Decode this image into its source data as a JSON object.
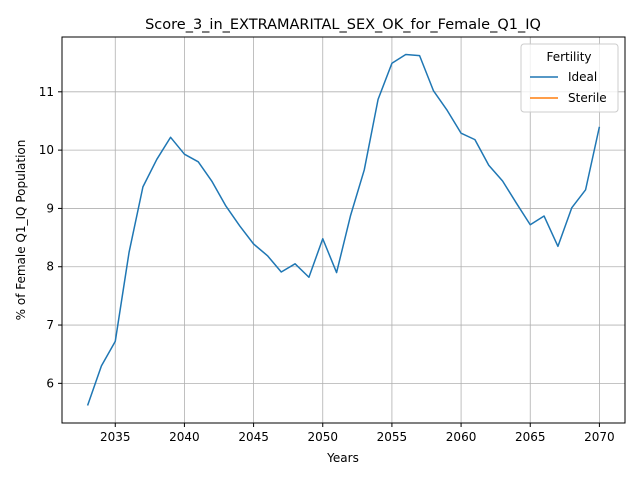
{
  "chart_data": {
    "type": "line",
    "title": "Score_3_in_EXTRAMARITAL_SEX_OK_for_Female_Q1_IQ",
    "xlabel": "Years",
    "ylabel": "% of Female Q1_IQ Population",
    "xlim": [
      2031.15,
      2071.85
    ],
    "ylim": [
      5.32,
      11.94
    ],
    "xticks": [
      2035,
      2040,
      2045,
      2050,
      2055,
      2060,
      2065,
      2070
    ],
    "yticks": [
      6,
      7,
      8,
      9,
      10,
      11
    ],
    "grid": true,
    "legend": {
      "title": "Fertility",
      "placement": "top-right"
    },
    "series": [
      {
        "name": "Ideal",
        "color": "#1f77b4",
        "x": [
          2033,
          2034,
          2035,
          2036,
          2037,
          2038,
          2039,
          2040,
          2041,
          2042,
          2043,
          2044,
          2045,
          2046,
          2047,
          2048,
          2049,
          2050,
          2051,
          2052,
          2053,
          2054,
          2055,
          2056,
          2057,
          2058,
          2059,
          2060,
          2061,
          2062,
          2063,
          2064,
          2065,
          2066,
          2067,
          2068,
          2069,
          2070
        ],
        "values": [
          5.62,
          6.3,
          6.72,
          8.25,
          9.37,
          9.84,
          10.22,
          9.93,
          9.8,
          9.46,
          9.04,
          8.7,
          8.39,
          8.19,
          7.91,
          8.05,
          7.82,
          8.48,
          7.9,
          8.87,
          9.66,
          10.87,
          11.49,
          11.64,
          11.62,
          11.02,
          10.68,
          10.29,
          10.18,
          9.74,
          9.47,
          9.09,
          8.72,
          8.87,
          8.35,
          9.01,
          9.32,
          10.4
        ]
      },
      {
        "name": "Sterile",
        "color": "#ff7f0e",
        "x": [],
        "values": []
      }
    ]
  }
}
